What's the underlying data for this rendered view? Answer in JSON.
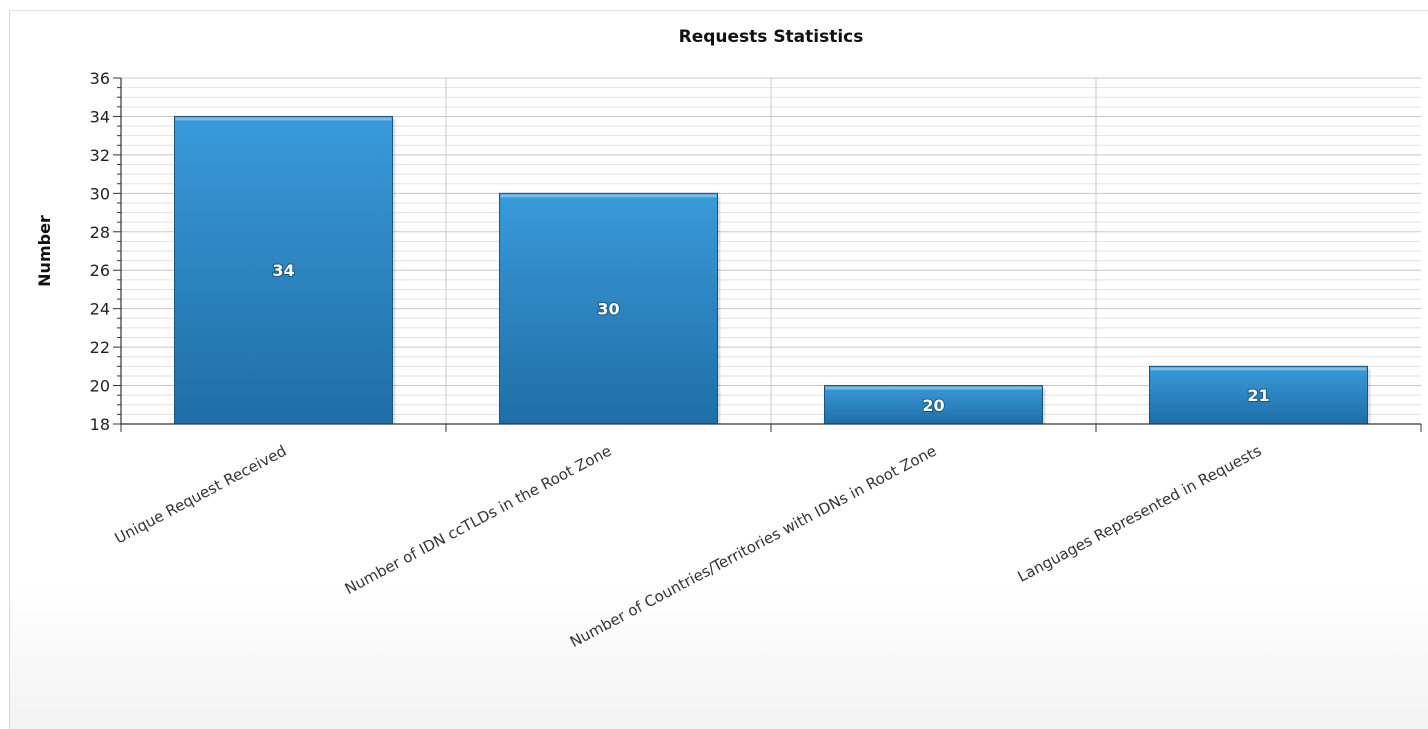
{
  "chart_data": {
    "type": "bar",
    "title": "Requests Statistics",
    "xlabel": "",
    "ylabel": "Number",
    "categories": [
      "Unique Request Received",
      "Number of IDN ccTLDs in the Root Zone",
      "Number of Countries/Territories with IDNs in Root Zone",
      "Languages Represented in Requests"
    ],
    "values": [
      34,
      30,
      20,
      21
    ],
    "ylim": [
      18,
      36
    ],
    "yticks": [
      18,
      20,
      22,
      24,
      26,
      28,
      30,
      32,
      34,
      36
    ],
    "grid": true,
    "legend": "none",
    "colors": {
      "bar_top": "#3a9ad9",
      "bar_bottom": "#1f6ea6",
      "bar_edge": "#17567f",
      "grid_minor": "#e2e2e2",
      "grid_major": "#c8c8c8",
      "axis": "#333333"
    }
  }
}
